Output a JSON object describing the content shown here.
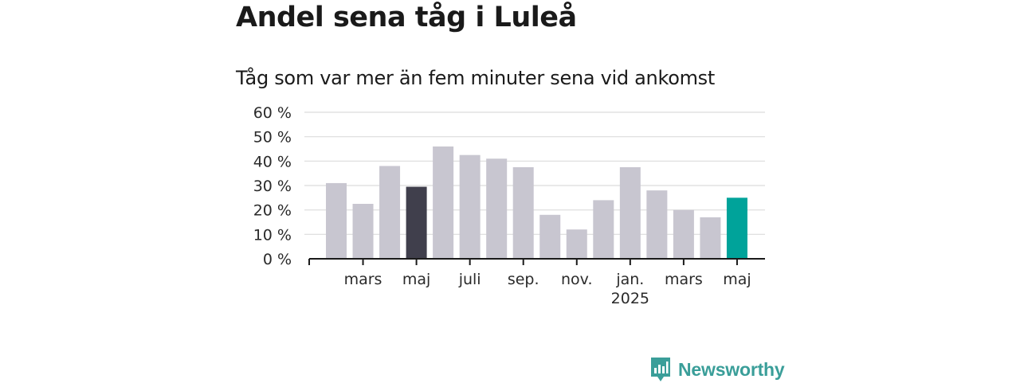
{
  "title": "Andel sena tåg i Luleå",
  "subtitle": "Tåg som var mer än fem minuter sena vid ankomst",
  "brand": {
    "name": "Newsworthy",
    "icon": "newsworthy-logo-icon",
    "color": "#3a9e99"
  },
  "chart_data": {
    "type": "bar",
    "title": "Andel sena tåg i Luleå",
    "subtitle": "Tåg som var mer än fem minuter sena vid ankomst",
    "values": [
      31,
      22.5,
      38,
      29.5,
      46,
      42.5,
      41,
      37.5,
      18,
      12,
      24,
      37.5,
      28,
      20,
      17,
      25
    ],
    "highlight": [
      {
        "index": 3,
        "color": "#403f4c"
      },
      {
        "index": 15,
        "color": "#00a39a"
      }
    ],
    "default_color": "#c8c6d0",
    "ylim": [
      0,
      60
    ],
    "y_ticks": [
      {
        "value": 0,
        "label": "0 %"
      },
      {
        "value": 10,
        "label": "10 %"
      },
      {
        "value": 20,
        "label": "20 %"
      },
      {
        "value": 30,
        "label": "30 %"
      },
      {
        "value": 40,
        "label": "40 %"
      },
      {
        "value": 50,
        "label": "50 %"
      },
      {
        "value": 60,
        "label": "60 %"
      }
    ],
    "x_ticks": [
      {
        "index": 1,
        "label": "mars"
      },
      {
        "index": 3,
        "label": "maj"
      },
      {
        "index": 5,
        "label": "juli"
      },
      {
        "index": 7,
        "label": "sep."
      },
      {
        "index": 9,
        "label": "nov."
      },
      {
        "index": 11,
        "label": "jan.",
        "sublabel": "2025"
      },
      {
        "index": 13,
        "label": "mars"
      },
      {
        "index": 15,
        "label": "maj"
      }
    ],
    "grid": true,
    "legend": "none"
  }
}
